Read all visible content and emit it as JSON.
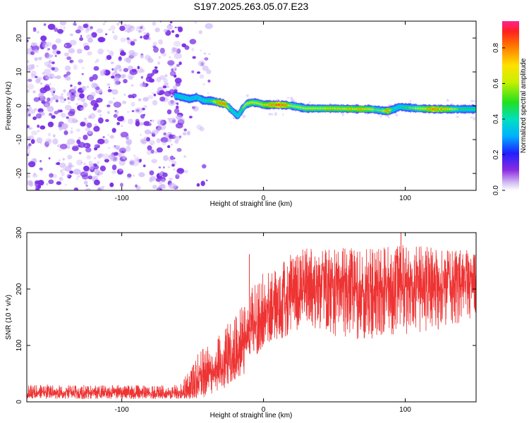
{
  "title": "S197.2025.263.05.07.E23",
  "colors": {
    "signal": "#ee3333",
    "scatter": "#7a2ee6",
    "scatter_light": "#cdb4f7",
    "axis": "#000000",
    "background": "#ffffff"
  },
  "chart_data": [
    {
      "type": "heatmap",
      "name": "spectrogram",
      "title": "S197.2025.263.05.07.E23",
      "xlabel": "Height of straight line (km)",
      "ylabel": "Frequency (Hz)",
      "xlim": [
        -167,
        150
      ],
      "ylim": [
        -25,
        25
      ],
      "xticks": [
        {
          "v": -100,
          "label": "-100"
        },
        {
          "v": 0,
          "label": "0"
        },
        {
          "v": 100,
          "label": "100"
        }
      ],
      "yticks": [
        {
          "v": -20,
          "label": "-20"
        },
        {
          "v": -10,
          "label": "-10"
        },
        {
          "v": 0,
          "label": "0"
        },
        {
          "v": 10,
          "label": "10"
        },
        {
          "v": 20,
          "label": "20"
        }
      ],
      "noise_extent_km": [
        -167,
        -42
      ],
      "ridge": {
        "description": "narrow high-amplitude frequency track",
        "x": [
          -62,
          -57,
          -52,
          -47,
          -42,
          -37,
          -32,
          -27,
          -22,
          -18,
          -15,
          -12,
          -8,
          -4,
          0,
          5,
          10,
          15,
          20,
          30,
          40,
          50,
          60,
          70,
          75,
          80,
          85,
          88,
          92,
          96,
          100,
          110,
          120,
          130,
          140,
          150
        ],
        "freq": [
          3,
          2.5,
          2,
          2.5,
          1.5,
          1.5,
          1,
          0.5,
          -1.5,
          -3,
          -1,
          0.5,
          1,
          0.8,
          0.3,
          0.3,
          0.3,
          0.2,
          0,
          -0.8,
          -0.8,
          -0.8,
          -0.9,
          -1,
          -1,
          -1.2,
          -1.5,
          -1.5,
          -1,
          -0.3,
          -0.5,
          -0.8,
          -1,
          -1,
          -1,
          -1
        ],
        "amplitude": [
          0.35,
          0.4,
          0.4,
          0.35,
          0.45,
          0.55,
          0.85,
          0.9,
          0.5,
          0.4,
          0.6,
          0.7,
          0.85,
          0.7,
          0.8,
          0.9,
          0.95,
          0.95,
          0.7,
          0.75,
          0.75,
          0.8,
          0.8,
          0.85,
          0.8,
          0.6,
          0.7,
          0.95,
          0.5,
          0.4,
          0.55,
          0.75,
          0.9,
          0.8,
          0.55,
          0.5
        ]
      },
      "colorbar": {
        "label": "Normalized spectral amplitude",
        "range": [
          0,
          0.95
        ],
        "ticks": [
          {
            "v": 0.0,
            "label": "0.0"
          },
          {
            "v": 0.2,
            "label": "0.2"
          },
          {
            "v": 0.4,
            "label": "0.4"
          },
          {
            "v": 0.6,
            "label": "0.6"
          },
          {
            "v": 0.8,
            "label": "0.8"
          }
        ]
      }
    },
    {
      "type": "line",
      "name": "snr",
      "xlabel": "Height of straight line (km)",
      "ylabel": "SNR (10 * v/v)",
      "xlim": [
        -167,
        150
      ],
      "ylim": [
        0,
        300
      ],
      "xticks": [
        {
          "v": -100,
          "label": "-100"
        },
        {
          "v": 0,
          "label": "0"
        },
        {
          "v": 100,
          "label": "100"
        }
      ],
      "yticks": [
        {
          "v": 0,
          "label": "0"
        },
        {
          "v": 100,
          "label": "100"
        },
        {
          "v": 200,
          "label": "200"
        },
        {
          "v": 300,
          "label": "300"
        }
      ],
      "series": [
        {
          "name": "SNR",
          "envelope_x": [
            -167,
            -140,
            -110,
            -80,
            -60,
            -52,
            -45,
            -40,
            -30,
            -20,
            -15,
            -10,
            -5,
            0,
            10,
            20,
            30,
            50,
            70,
            100,
            130,
            150
          ],
          "baseline": [
            16,
            16,
            16,
            15,
            16,
            20,
            40,
            50,
            65,
            85,
            95,
            125,
            140,
            150,
            170,
            195,
            210,
            212,
            210,
            212,
            215,
            220
          ],
          "upper": [
            30,
            30,
            30,
            30,
            30,
            60,
            90,
            100,
            125,
            155,
            170,
            200,
            210,
            230,
            240,
            265,
            275,
            275,
            270,
            280,
            270,
            270
          ],
          "lower": [
            5,
            5,
            5,
            5,
            5,
            5,
            5,
            10,
            20,
            40,
            45,
            60,
            80,
            100,
            110,
            120,
            140,
            110,
            110,
            120,
            130,
            150
          ],
          "spikes": [
            {
              "x": -10,
              "y": 262
            },
            {
              "x": 97,
              "y": 300
            }
          ]
        }
      ]
    }
  ]
}
